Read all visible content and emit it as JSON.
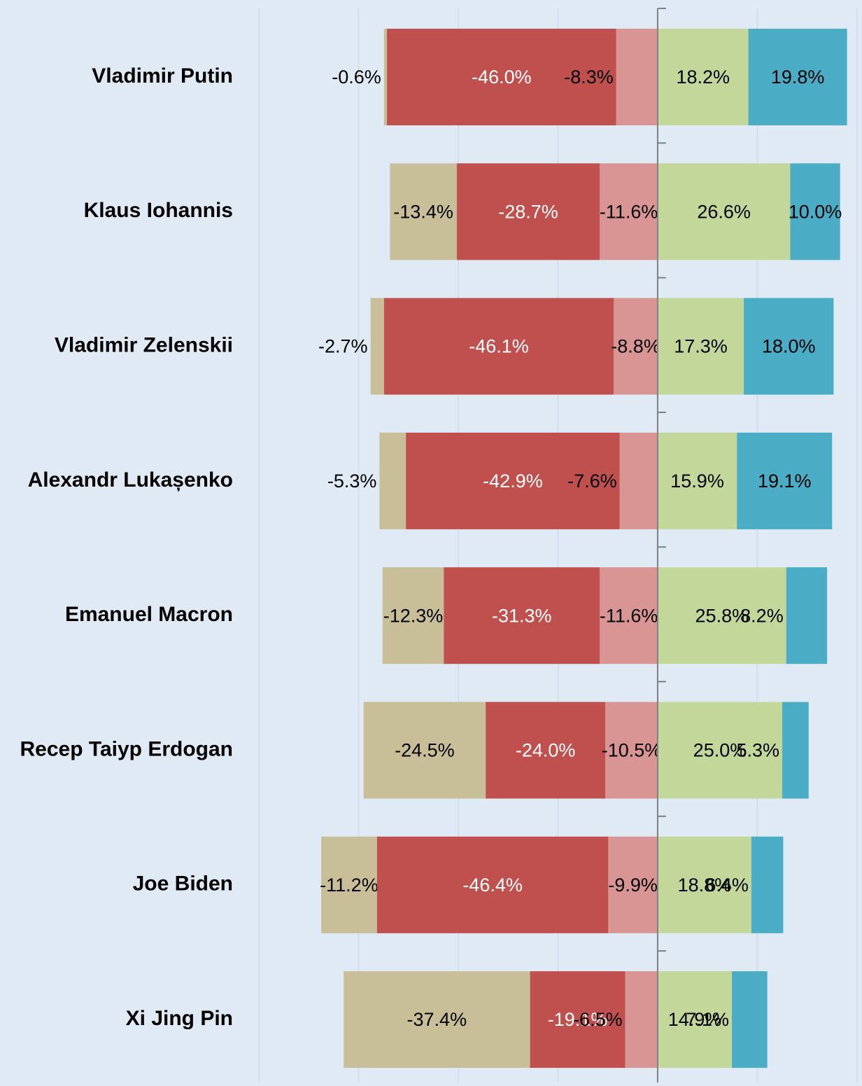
{
  "chart_data": {
    "type": "diverging-stacked-bar",
    "categories": [
      "Vladimir Putin",
      "Klaus Iohannis",
      "Vladimir Zelenskii",
      "Alexandr Lukașenko",
      "Emanuel Macron",
      "Recep Taiyp Erdogan",
      "Joe Biden",
      "Xi Jing Pin"
    ],
    "series": [
      {
        "color": "#c8bf98",
        "values": [
          -0.6,
          -13.4,
          -2.7,
          -5.3,
          -12.3,
          -24.5,
          -11.2,
          -37.4
        ],
        "value_labels": [
          "-0.6%",
          "-13.4%",
          "-2.7%",
          "-5.3%",
          "-12.3%",
          "-24.5%",
          "-11.2%",
          "-37.4%"
        ]
      },
      {
        "color": "#c0504d",
        "values": [
          -46.0,
          -28.7,
          -46.1,
          -42.9,
          -31.3,
          -24.0,
          -46.4,
          -19.1
        ],
        "value_labels": [
          "-46.0%",
          "-28.7%",
          "-46.1%",
          "-42.9%",
          "-31.3%",
          "-24.0%",
          "-46.4%",
          "-19.1%"
        ]
      },
      {
        "color": "#d99594",
        "values": [
          -8.3,
          -11.6,
          -8.8,
          -7.6,
          -11.6,
          -10.5,
          -9.9,
          -6.5
        ],
        "value_labels": [
          "-8.3%",
          "-11.6%",
          "-8.8%",
          "-7.6%",
          "-11.6%",
          "-10.5%",
          "-9.9%",
          "-6.5%"
        ]
      },
      {
        "color": "#c4d79b",
        "values": [
          18.2,
          26.6,
          17.3,
          15.9,
          25.8,
          25.0,
          18.8,
          14.9
        ],
        "value_labels": [
          "18.2%",
          "26.6%",
          "17.3%",
          "15.9%",
          "25.8%",
          "25.0%",
          "18.8%",
          "14.9%"
        ]
      },
      {
        "color": "#4bacc6",
        "values": [
          19.8,
          10.0,
          18.0,
          19.1,
          8.2,
          5.3,
          6.4,
          7.1
        ],
        "value_labels": [
          "19.8%",
          "10.0%",
          "18.0%",
          "19.1%",
          "8.2%",
          "5.3%",
          "6.4%",
          "7.1%"
        ]
      }
    ],
    "xlim": [
      -80,
      41
    ],
    "xticks": [
      -80,
      -60,
      -40,
      -20,
      0,
      20,
      40
    ],
    "grid": true
  }
}
